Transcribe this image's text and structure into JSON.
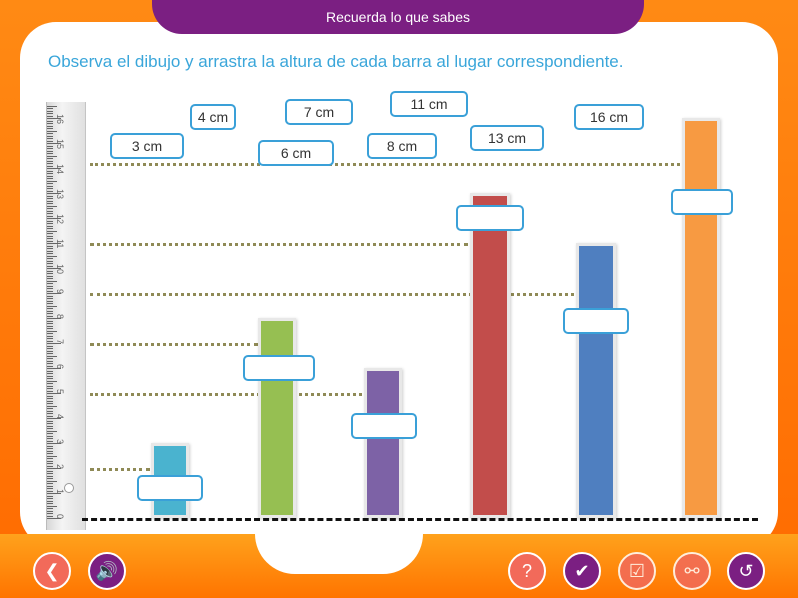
{
  "header": {
    "title": "Recuerda lo que sabes"
  },
  "instruction": "Observa el dibujo y arrastra la altura de cada barra al lugar correspondiente.",
  "ruler": {
    "numbers": [
      "0",
      "1",
      "2",
      "3",
      "4",
      "5",
      "6",
      "7",
      "8",
      "9",
      "10",
      "11",
      "12",
      "13",
      "14",
      "15",
      "16"
    ]
  },
  "chips": [
    {
      "label": "3 cm"
    },
    {
      "label": "4 cm"
    },
    {
      "label": "7 cm"
    },
    {
      "label": "6 cm"
    },
    {
      "label": "11 cm"
    },
    {
      "label": "8 cm"
    },
    {
      "label": "13 cm"
    },
    {
      "label": "16 cm"
    }
  ],
  "bars": [
    {
      "value": 3,
      "color": "#4ab3cf"
    },
    {
      "value": 8,
      "color": "#96bf52"
    },
    {
      "value": 6,
      "color": "#7d62a6"
    },
    {
      "value": 13,
      "color": "#c24d4b"
    },
    {
      "value": 11,
      "color": "#4f7fc0"
    },
    {
      "value": 16,
      "color": "#f79a42"
    }
  ],
  "guides": [
    2,
    5,
    7,
    9,
    11,
    14
  ],
  "colors": {
    "accent": "#3aa0d8",
    "header": "#7b1f82",
    "frame": "#ff7f00"
  },
  "nav": {
    "back": "arrow-left-icon",
    "audio": "speaker-icon",
    "help": "question-icon",
    "check": "check-circle-icon",
    "validate": "checklist-icon",
    "key": "key-icon",
    "restart": "restart-icon"
  }
}
